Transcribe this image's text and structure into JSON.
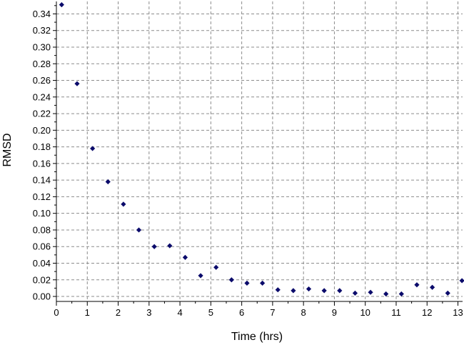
{
  "chart_data": {
    "type": "scatter",
    "title": "",
    "xlabel": "Time (hrs)",
    "ylabel": "RMSD",
    "xlim": [
      0,
      13.15
    ],
    "ylim": [
      -0.006,
      0.355
    ],
    "grid": true,
    "x_ticks": [
      0,
      1,
      2,
      3,
      4,
      5,
      6,
      7,
      8,
      9,
      10,
      11,
      12,
      13
    ],
    "x_tick_labels": [
      "0",
      "1",
      "2",
      "3",
      "4",
      "5",
      "6",
      "7",
      "8",
      "9",
      "10",
      "11",
      "12",
      "13"
    ],
    "y_ticks": [
      0,
      0.02,
      0.04,
      0.06,
      0.08,
      0.1,
      0.12,
      0.14,
      0.16,
      0.18,
      0.2,
      0.22,
      0.24,
      0.26,
      0.28,
      0.3,
      0.32,
      0.34
    ],
    "y_tick_labels": [
      "0.00",
      "0.02",
      "0.04",
      "0.06",
      "0.08",
      "0.10",
      "0.12",
      "0.14",
      "0.16",
      "0.18",
      "0.20",
      "0.22",
      "0.24",
      "0.26",
      "0.28",
      "0.30",
      "0.32",
      "0.34"
    ],
    "marker_color": "#0b0b6b",
    "grid_color": "#8c8c8c",
    "series": [
      {
        "points": [
          [
            0.17,
            0.351
          ],
          [
            0.67,
            0.256
          ],
          [
            1.17,
            0.178
          ],
          [
            1.67,
            0.138
          ],
          [
            2.17,
            0.111
          ],
          [
            2.67,
            0.08
          ],
          [
            3.17,
            0.06
          ],
          [
            3.67,
            0.061
          ],
          [
            4.17,
            0.047
          ],
          [
            4.67,
            0.025
          ],
          [
            5.17,
            0.035
          ],
          [
            5.67,
            0.02
          ],
          [
            6.17,
            0.016
          ],
          [
            6.67,
            0.016
          ],
          [
            7.17,
            0.008
          ],
          [
            7.67,
            0.007
          ],
          [
            8.17,
            0.009
          ],
          [
            8.67,
            0.007
          ],
          [
            9.17,
            0.007
          ],
          [
            9.67,
            0.004
          ],
          [
            10.17,
            0.005
          ],
          [
            10.67,
            0.003
          ],
          [
            11.17,
            0.003
          ],
          [
            11.67,
            0.014
          ],
          [
            12.17,
            0.011
          ],
          [
            12.67,
            0.004
          ],
          [
            13.13,
            0.019
          ]
        ]
      }
    ]
  }
}
